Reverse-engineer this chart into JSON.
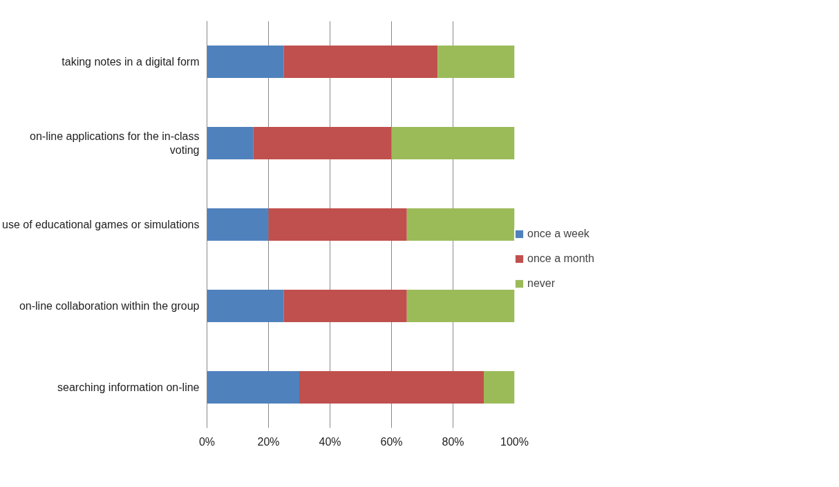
{
  "chart_data": {
    "type": "bar",
    "orientation": "horizontal",
    "stacked": true,
    "categories": [
      "taking notes in a digital form",
      "on-line applications for the in-class voting",
      "use of educational games or simulations",
      "on-line collaboration within the group",
      "searching information on-line"
    ],
    "series": [
      {
        "name": "once a week",
        "color": "#4f81bd",
        "values": [
          25,
          15,
          20,
          25,
          30
        ]
      },
      {
        "name": "once a month",
        "color": "#c0504d",
        "values": [
          50,
          45,
          45,
          40,
          60
        ]
      },
      {
        "name": "never",
        "color": "#9bbb59",
        "values": [
          25,
          40,
          35,
          35,
          10
        ]
      }
    ],
    "xlim": [
      0,
      100
    ],
    "xticks": [
      {
        "value": 0,
        "label": "0%"
      },
      {
        "value": 20,
        "label": "20%"
      },
      {
        "value": 40,
        "label": "40%"
      },
      {
        "value": 60,
        "label": "60%"
      },
      {
        "value": 80,
        "label": "80%"
      },
      {
        "value": 100,
        "label": "100%"
      }
    ],
    "grid": "x",
    "legend": "right"
  }
}
